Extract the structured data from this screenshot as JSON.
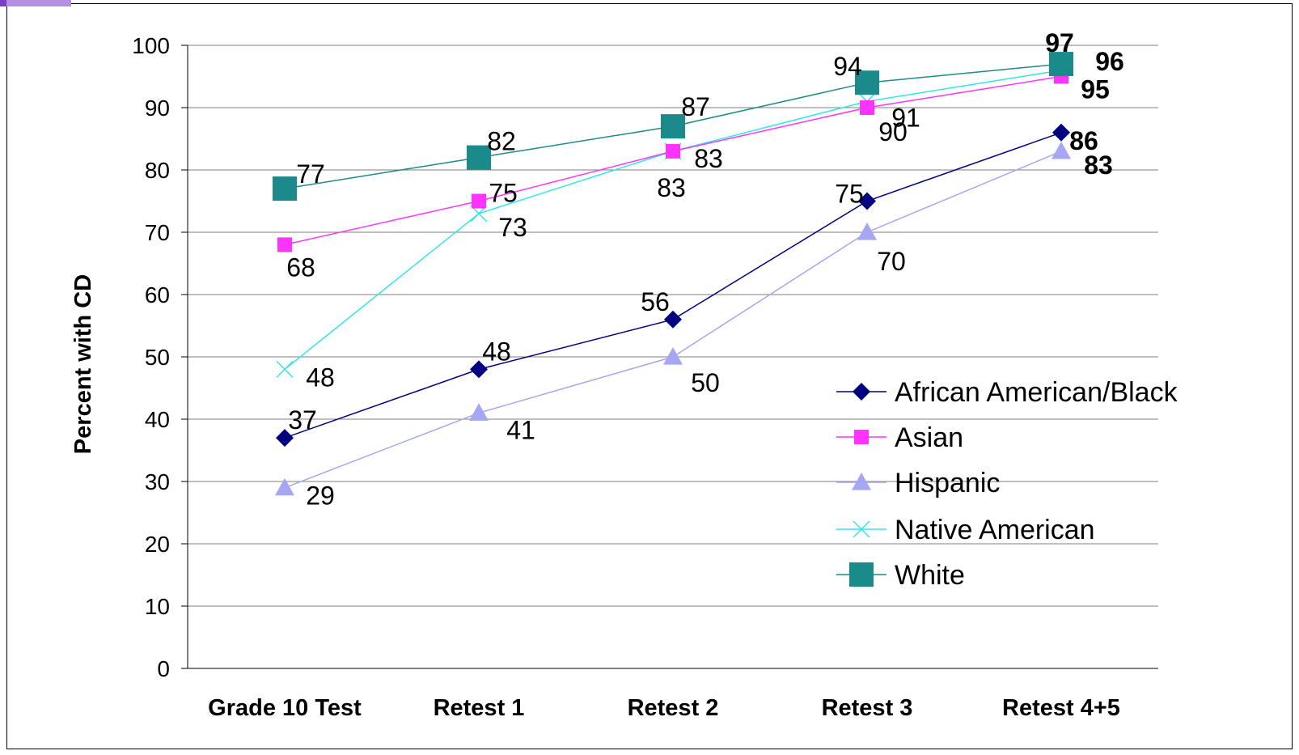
{
  "chart_data": {
    "type": "line",
    "title": "",
    "xlabel": "",
    "ylabel": "Percent with CD",
    "ylim": [
      0,
      100
    ],
    "yticks": [
      0,
      10,
      20,
      30,
      40,
      50,
      60,
      70,
      80,
      90,
      100
    ],
    "grid": true,
    "legend_position": "right",
    "categories": [
      "Grade 10 Test",
      "Retest 1",
      "Retest 2",
      "Retest 3",
      "Retest 4+5"
    ],
    "series": [
      {
        "name": "African American/Black",
        "color": "#000080",
        "marker": "diamond",
        "values": [
          37,
          48,
          56,
          75,
          86
        ]
      },
      {
        "name": "Asian",
        "color": "#ff33ff",
        "marker": "square",
        "values": [
          68,
          75,
          83,
          90,
          95
        ]
      },
      {
        "name": "Hispanic",
        "color": "#a6a6f5",
        "marker": "triangle",
        "values": [
          29,
          41,
          50,
          70,
          83
        ]
      },
      {
        "name": "Native American",
        "color": "#33e5e5",
        "marker": "x",
        "values": [
          48,
          73,
          83,
          91,
          96
        ]
      },
      {
        "name": "White",
        "color": "#1a8a8a",
        "marker": "bigsquare",
        "values": [
          77,
          82,
          87,
          94,
          97
        ]
      }
    ]
  }
}
